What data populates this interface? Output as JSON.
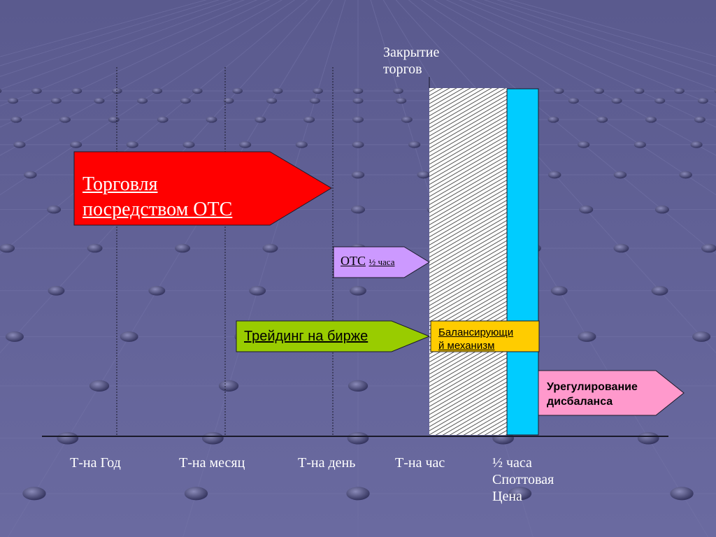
{
  "closing_label": [
    "Закрытие",
    "торгов"
  ],
  "otc_arrow": {
    "line1": "Торговля",
    "line2": "посредством ОТС"
  },
  "otc_half": {
    "main": "ОТС",
    "small": "½ часа"
  },
  "exchange_arrow": "Трейдинг на бирже",
  "balancing": {
    "line1": "Балансирующи",
    "line2": "й механизм"
  },
  "settlement": {
    "line1": "Урегулирование",
    "line2": "дисбаланса"
  },
  "axis_ticks": [
    "Т-на Год",
    "Т-на месяц",
    "Т-на день",
    "Т-на час"
  ],
  "half_hour_label": [
    "½ часа",
    "Споттовая",
    "Цена"
  ],
  "colors": {
    "background": "#5f5f93",
    "otc": "#ff0000",
    "otc_half": "#cc99ff",
    "exchange": "#99cc00",
    "balancing": "#ffcc00",
    "cyan": "#00ccff",
    "settlement": "#ff99cc"
  }
}
